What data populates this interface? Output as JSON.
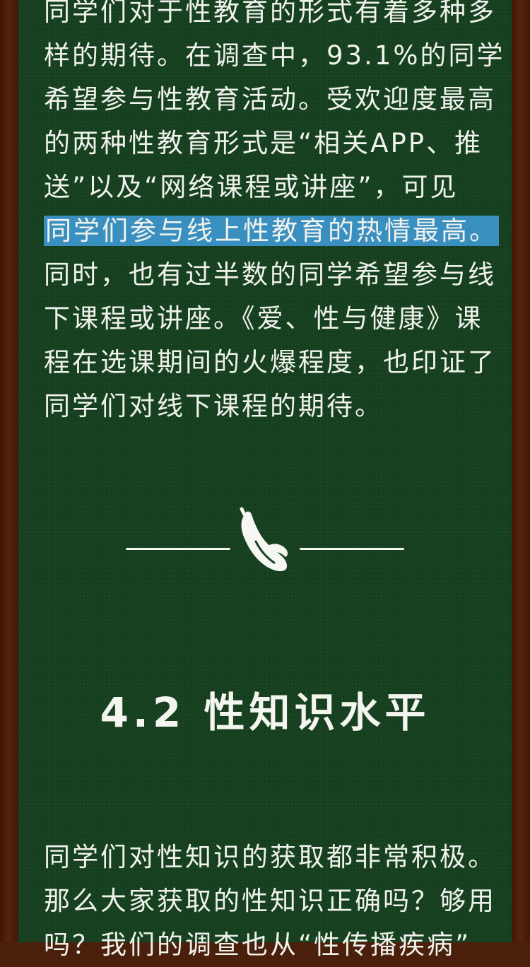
{
  "paragraph_top": {
    "lines": [
      "同学们对于性教育的形式有着多种多",
      "样的期待。在调查中，93.1%的同学",
      "希望参与性教育活动。受欢迎度最高",
      "的两种性教育形式是“相关APP、推",
      "送”以及“网络课程或讲座”，可见",
      "同学们参与线上性教育的热情最高。",
      "同时，也有过半数的同学希望参与线",
      "下课程或讲座。《爱、性与健康》课",
      "程在选课期间的火爆程度，也印证了",
      "同学们对线下课程的期待。"
    ],
    "highlighted_line_index": 5
  },
  "divider": {
    "icon": "banana-icon"
  },
  "section_heading": "4.2 性知识水平",
  "paragraph_bottom": {
    "lines": [
      "同学们对性知识的获取都非常积极。",
      "那么大家获取的性知识正确吗？够用",
      "吗？我们的调查也从“性传播疾病”"
    ]
  },
  "colors": {
    "board": "#16401f",
    "frame": "#4a1f0b",
    "text": "#f0f2ec",
    "highlight": "#3a8fc1"
  }
}
